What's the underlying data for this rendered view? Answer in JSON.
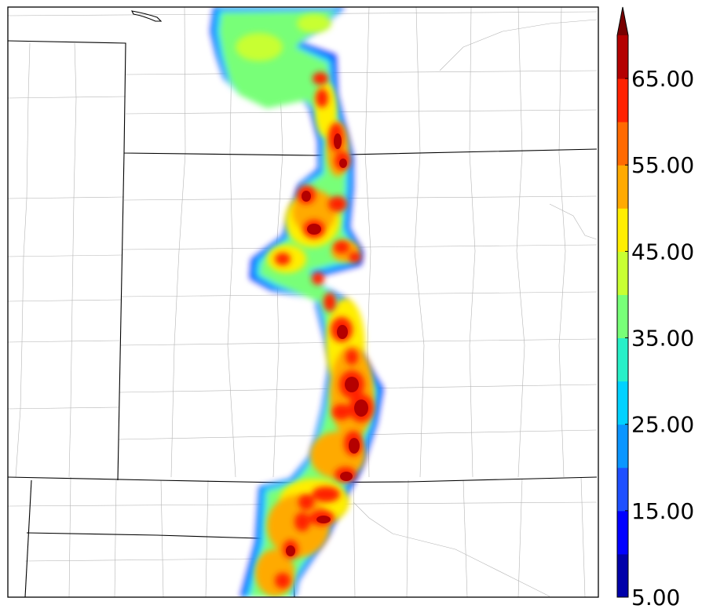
{
  "colorbar": {
    "levels": [
      5,
      10,
      15,
      20,
      25,
      30,
      35,
      40,
      45,
      50,
      55,
      60,
      65,
      70
    ],
    "extend": "max",
    "colors": [
      "#0000aa",
      "#0000ff",
      "#1e50ff",
      "#0a96ff",
      "#00d2ff",
      "#28f0c8",
      "#78ff78",
      "#c8ff32",
      "#ffee00",
      "#ffaa00",
      "#ff6a00",
      "#ff2200",
      "#b40000",
      "#780000"
    ],
    "tick_labels": [
      "5.00",
      "15.00",
      "25.00",
      "35.00",
      "45.00",
      "55.00",
      "65.00"
    ]
  }
}
